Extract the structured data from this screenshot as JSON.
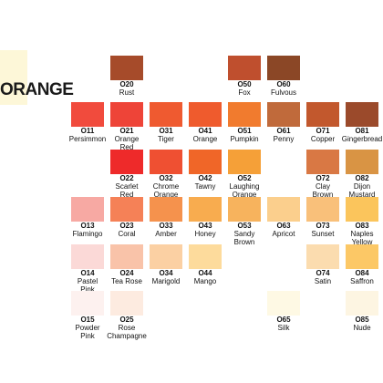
{
  "heading": "ORANGE",
  "swatches": [
    {
      "code": "O20",
      "name": "Rust",
      "color": "#a64b2a",
      "col": 0,
      "row": 0
    },
    {
      "code": "O50",
      "name": "Fox",
      "color": "#bf4f2e",
      "col": 3,
      "row": 0
    },
    {
      "code": "O60",
      "name": "Fulvous",
      "color": "#8b4726",
      "col": 4,
      "row": 0
    },
    {
      "code": "O11",
      "name": "Persimmon",
      "color": "#f14b3d",
      "col": -1,
      "row": 1
    },
    {
      "code": "O21",
      "name": "Orange\nRed",
      "color": "#ee4438",
      "col": 0,
      "row": 1
    },
    {
      "code": "O31",
      "name": "Tiger",
      "color": "#ef5a30",
      "col": 1,
      "row": 1
    },
    {
      "code": "O41",
      "name": "Orange",
      "color": "#ef5b2d",
      "col": 2,
      "row": 1
    },
    {
      "code": "O51",
      "name": "Pumpkin",
      "color": "#f17b2e",
      "col": 3,
      "row": 1
    },
    {
      "code": "O61",
      "name": "Penny",
      "color": "#c06a3b",
      "col": 4,
      "row": 1
    },
    {
      "code": "O71",
      "name": "Copper",
      "color": "#c2582d",
      "col": 5,
      "row": 1
    },
    {
      "code": "O81",
      "name": "Gingerbread",
      "color": "#9b4a2b",
      "col": 6,
      "row": 1
    },
    {
      "code": "O22",
      "name": "Scarlet\nRed",
      "color": "#ee2a2a",
      "col": 0,
      "row": 2
    },
    {
      "code": "O32",
      "name": "Chrome\nOrange",
      "color": "#ef5032",
      "col": 1,
      "row": 2
    },
    {
      "code": "O42",
      "name": "Tawny",
      "color": "#f06628",
      "col": 2,
      "row": 2
    },
    {
      "code": "O52",
      "name": "Laughing\nOrange",
      "color": "#f5a038",
      "col": 3,
      "row": 2
    },
    {
      "code": "O72",
      "name": "Clay\nBrown",
      "color": "#d97844",
      "col": 5,
      "row": 2
    },
    {
      "code": "O82",
      "name": "Dijon\nMustard",
      "color": "#d99444",
      "col": 6,
      "row": 2
    },
    {
      "code": "O13",
      "name": "Flamingo",
      "color": "#f7a9a3",
      "col": -1,
      "row": 3
    },
    {
      "code": "O23",
      "name": "Coral",
      "color": "#f58157",
      "col": 0,
      "row": 3
    },
    {
      "code": "O33",
      "name": "Amber",
      "color": "#f5924d",
      "col": 1,
      "row": 3
    },
    {
      "code": "O43",
      "name": "Honey",
      "color": "#f8ac4f",
      "col": 2,
      "row": 3
    },
    {
      "code": "O53",
      "name": "Sandy\nBrown",
      "color": "#f7b35d",
      "col": 3,
      "row": 3
    },
    {
      "code": "O63",
      "name": "Apricot",
      "color": "#fbcf8d",
      "col": 4,
      "row": 3
    },
    {
      "code": "O73",
      "name": "Sunset",
      "color": "#f9c07a",
      "col": 5,
      "row": 3
    },
    {
      "code": "O83",
      "name": "Naples\nYellow",
      "color": "#fbc55c",
      "col": 6,
      "row": 3
    },
    {
      "code": "O14",
      "name": "Pastel\nPink",
      "color": "#fbd9d7",
      "col": -1,
      "row": 4
    },
    {
      "code": "O24",
      "name": "Tea Rose",
      "color": "#f9c3a9",
      "col": 0,
      "row": 4
    },
    {
      "code": "O34",
      "name": "Marigold",
      "color": "#fbd0a3",
      "col": 1,
      "row": 4
    },
    {
      "code": "O44",
      "name": "Mango",
      "color": "#fddb9c",
      "col": 2,
      "row": 4
    },
    {
      "code": "O74",
      "name": "Satin",
      "color": "#fbdcaf",
      "col": 5,
      "row": 4
    },
    {
      "code": "O84",
      "name": "Saffron",
      "color": "#fcc866",
      "col": 6,
      "row": 4
    },
    {
      "code": "O15",
      "name": "Powder\nPink",
      "color": "#fdf1ef",
      "col": -1,
      "row": 5
    },
    {
      "code": "O25",
      "name": "Rose\nChampagne",
      "color": "#fdebe0",
      "col": 0,
      "row": 5
    },
    {
      "code": "O65",
      "name": "Silk",
      "color": "#fef9e4",
      "col": 4,
      "row": 5
    },
    {
      "code": "O85",
      "name": "Nude",
      "color": "#fdf5e2",
      "col": 6,
      "row": 5
    }
  ]
}
